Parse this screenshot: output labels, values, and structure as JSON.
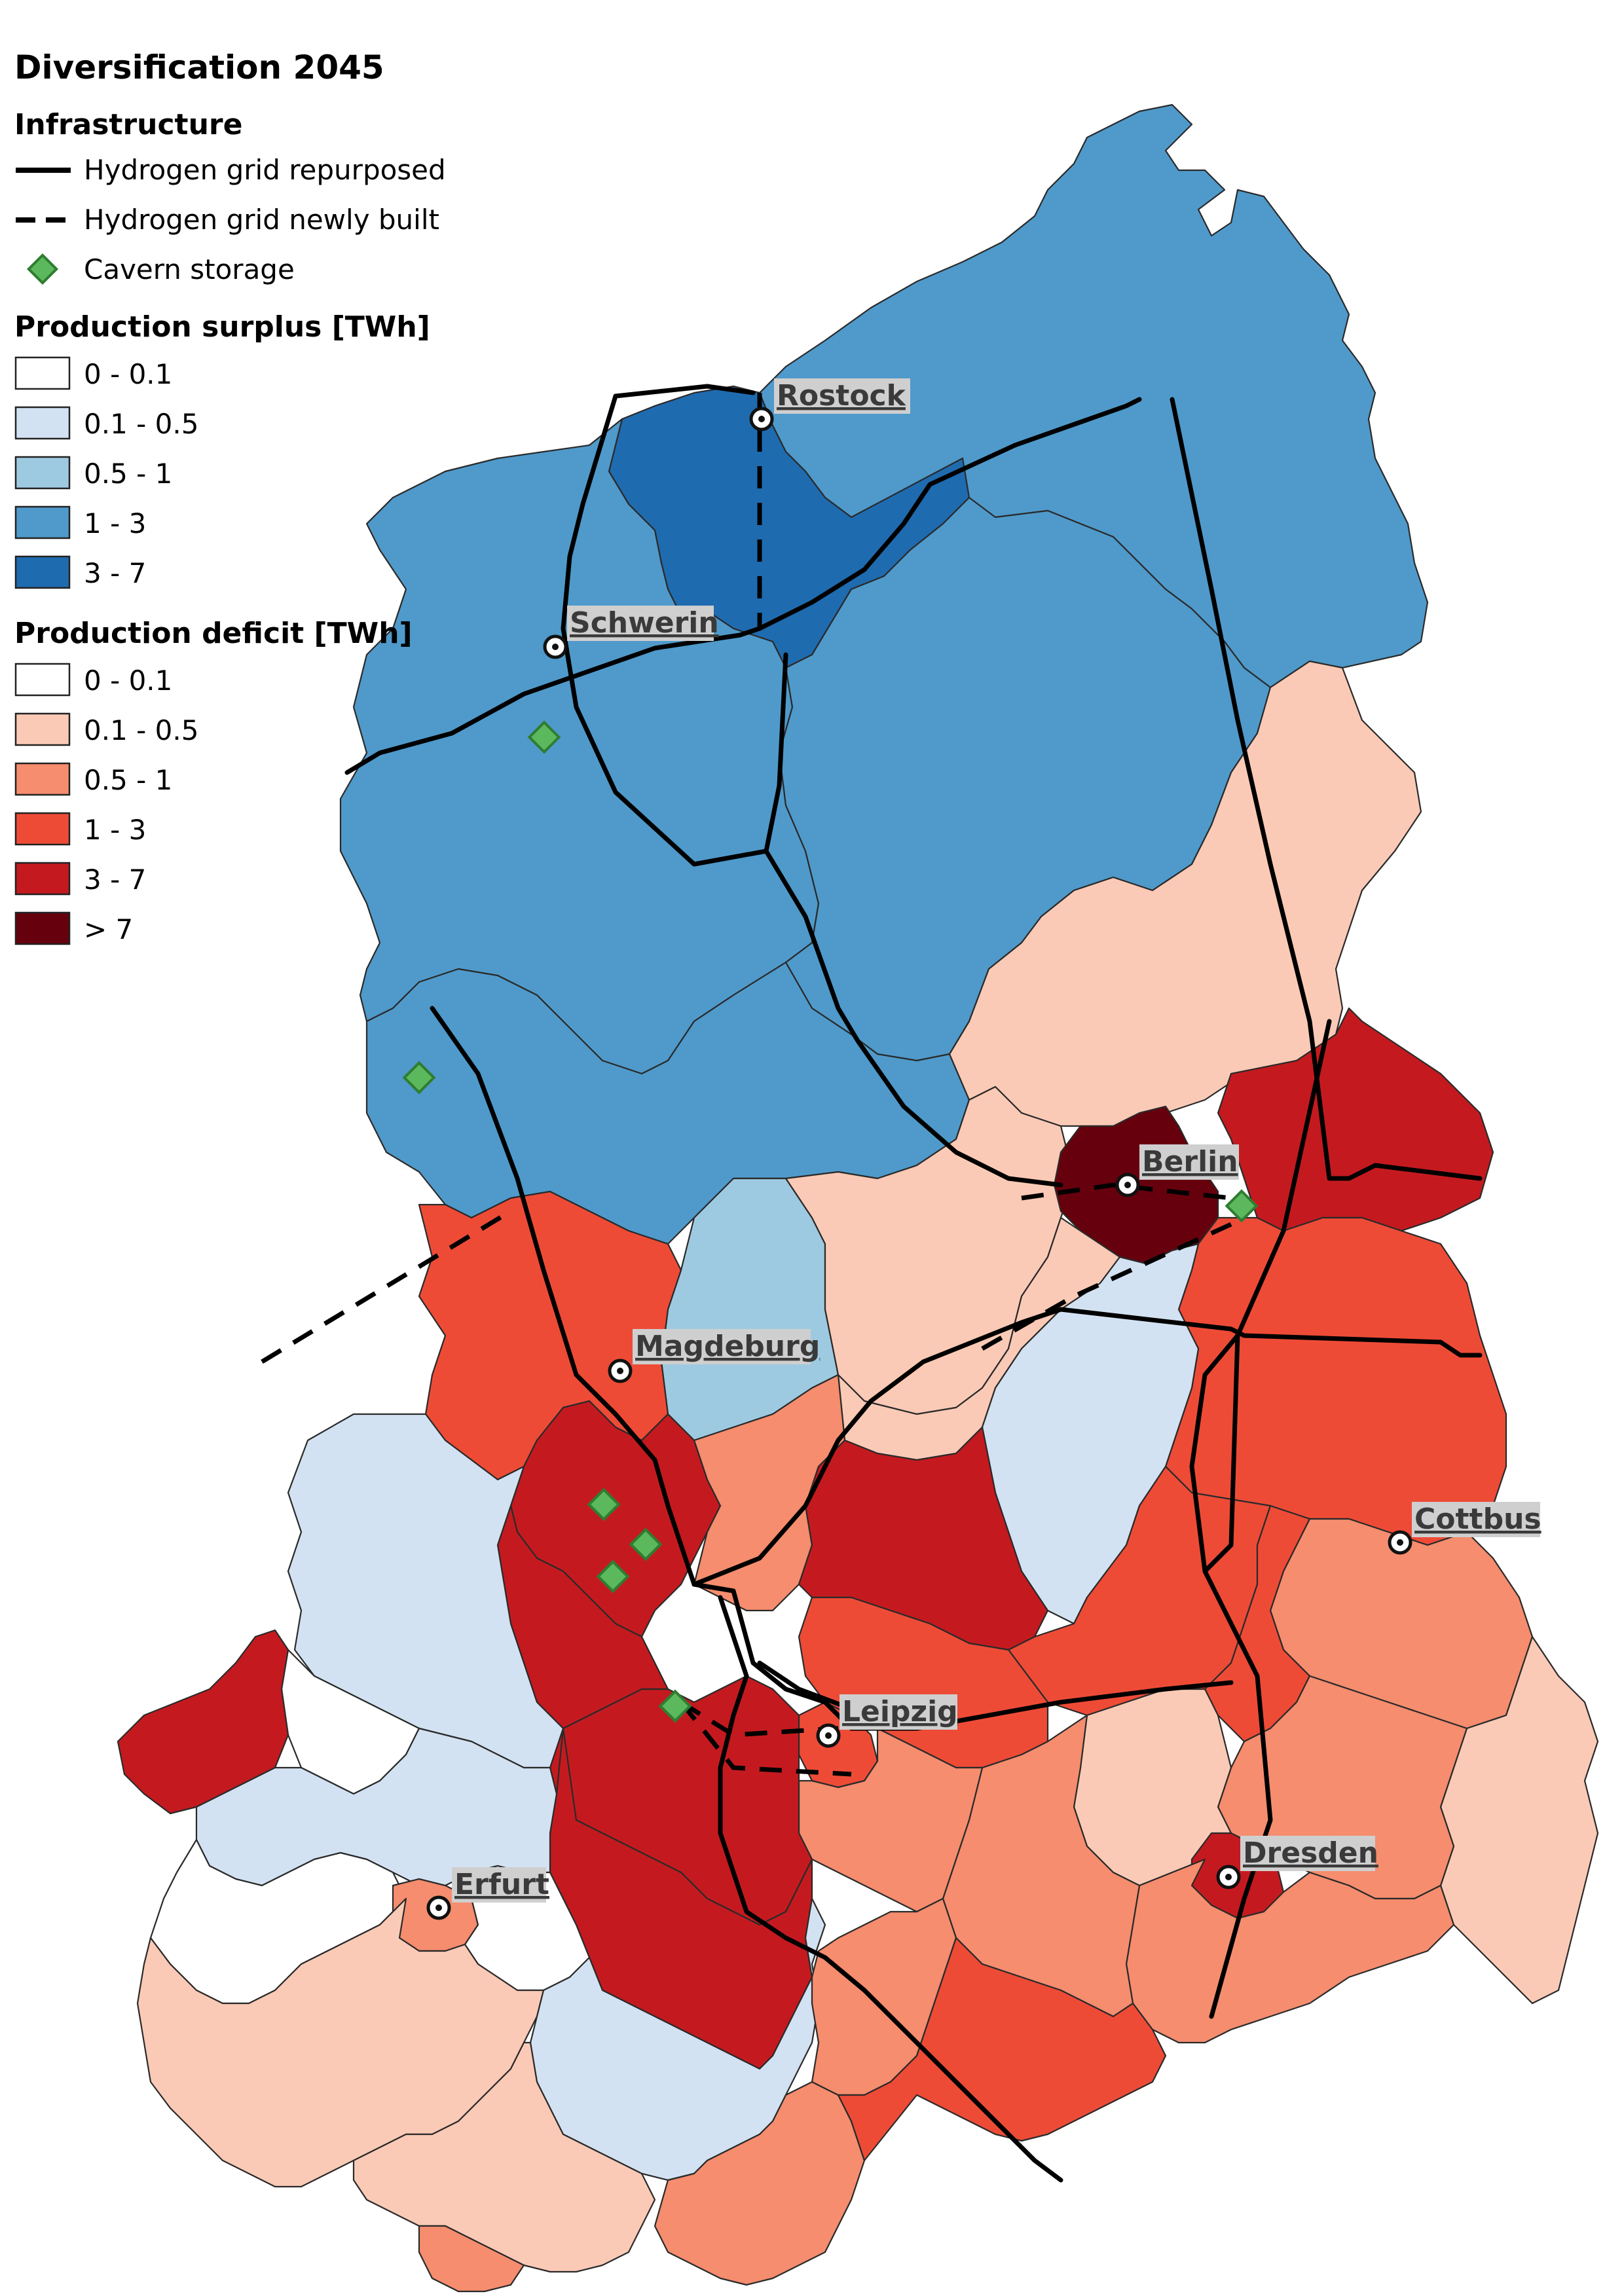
{
  "map": {
    "title": "Diversification 2045",
    "legend": {
      "infrastructure_heading": "Infrastructure",
      "infrastructure_items": [
        {
          "label": "Hydrogen grid repurposed",
          "icon": "solid-line-icon"
        },
        {
          "label": "Hydrogen grid newly built",
          "icon": "dashed-line-icon"
        },
        {
          "label": "Cavern storage",
          "icon": "green-diamond-icon",
          "color": "#5cb85c"
        }
      ],
      "surplus_heading": "Production surplus [TWh]",
      "surplus_classes": [
        {
          "label": "0 - 0.1",
          "color": "#ffffff"
        },
        {
          "label": "0.1 - 0.5",
          "color": "#d3e2f2"
        },
        {
          "label": "0.5 - 1",
          "color": "#9ecae1"
        },
        {
          "label": "1 - 3",
          "color": "#4f9acb"
        },
        {
          "label": "3 - 7",
          "color": "#1f6bb0"
        }
      ],
      "deficit_heading": "Production deficit [TWh]",
      "deficit_classes": [
        {
          "label": "0 - 0.1",
          "color": "#ffffff"
        },
        {
          "label": "0.1 - 0.5",
          "color": "#fbcab6"
        },
        {
          "label": "0.5 - 1",
          "color": "#f58d6e"
        },
        {
          "label": "1 - 3",
          "color": "#ee4b37"
        },
        {
          "label": "3 - 7",
          "color": "#c41a1f"
        },
        {
          "label": "> 7",
          "color": "#67000d"
        }
      ]
    },
    "cities": [
      {
        "name": "Rostock"
      },
      {
        "name": "Schwerin"
      },
      {
        "name": "Berlin"
      },
      {
        "name": "Magdeburg"
      },
      {
        "name": "Cottbus"
      },
      {
        "name": "Leipzig"
      },
      {
        "name": "Dresden"
      },
      {
        "name": "Erfurt"
      }
    ]
  }
}
